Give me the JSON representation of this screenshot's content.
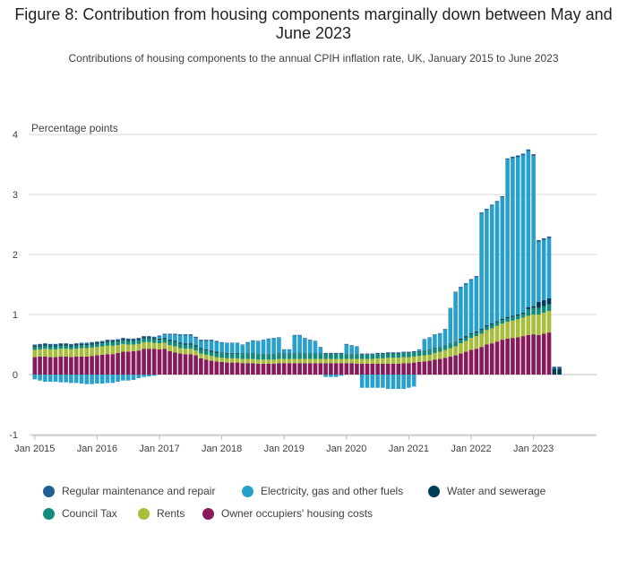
{
  "header": {
    "title": "Figure 8: Contribution from housing components marginally down between May and June 2023",
    "subtitle": "Contributions of housing components to the annual CPIH inflation rate, UK, January 2015 to June 2023"
  },
  "chart_data": {
    "type": "bar",
    "stacked": true,
    "ylabel": "Percentage points",
    "ylim": [
      -1,
      4
    ],
    "yticks": [
      "4",
      "3",
      "2",
      "1",
      "0",
      "-1"
    ],
    "xtick_labels": [
      "Jan 2015",
      "Jan 2016",
      "Jan 2017",
      "Jan 2018",
      "Jan 2019",
      "Jan 2020",
      "Jan 2021",
      "Jan 2022",
      "Jan 2023"
    ],
    "grid": true,
    "legend_position": "bottom",
    "start_month": "Jan 2015",
    "series": [
      {
        "name": "Regular maintenance and repair",
        "color": "#206095",
        "values": [
          0.02,
          0.02,
          0.02,
          0.02,
          0.02,
          0.02,
          0.02,
          0.02,
          0.02,
          0.02,
          0.02,
          0.02,
          0.02,
          0.02,
          0.02,
          0.02,
          0.02,
          0.02,
          0.02,
          0.02,
          0.02,
          0.02,
          0.02,
          0.02,
          0.02,
          0.02,
          0.02,
          0.02,
          0.02,
          0.02,
          0.02,
          0.02,
          0.02,
          0.02,
          0.02,
          0.02,
          0.01,
          0.01,
          0.01,
          0.01,
          0.01,
          0.01,
          0.01,
          0.01,
          0.01,
          0.01,
          0.01,
          0.01,
          0.01,
          0.01,
          0.01,
          0.01,
          0.01,
          0.01,
          0.01,
          0.01,
          0.01,
          0.01,
          0.01,
          0.01,
          0.01,
          0.01,
          0.01,
          0.01,
          0.01,
          0.01,
          0.01,
          0.01,
          0.01,
          0.01,
          0.01,
          0.01,
          0.01,
          0.01,
          0.01,
          0.01,
          0.01,
          0.01,
          0.01,
          0.01,
          0.01,
          0.01,
          0.02,
          0.02,
          0.02,
          0.02,
          0.02,
          0.02,
          0.02,
          0.02,
          0.02,
          0.02,
          0.03,
          0.03,
          0.03,
          0.03,
          0.03,
          0.03,
          0.03,
          0.03,
          0.03,
          0.03
        ]
      },
      {
        "name": "Electricity, gas and other fuels",
        "color": "#27a0cc",
        "values": [
          -0.08,
          -0.1,
          -0.12,
          -0.12,
          -0.12,
          -0.13,
          -0.13,
          -0.14,
          -0.14,
          -0.15,
          -0.16,
          -0.16,
          -0.15,
          -0.15,
          -0.14,
          -0.14,
          -0.12,
          -0.1,
          -0.1,
          -0.09,
          -0.06,
          -0.04,
          -0.03,
          -0.02,
          0.03,
          0.05,
          0.08,
          0.1,
          0.12,
          0.13,
          0.13,
          0.12,
          0.12,
          0.14,
          0.16,
          0.16,
          0.16,
          0.16,
          0.16,
          0.16,
          0.14,
          0.18,
          0.21,
          0.21,
          0.23,
          0.25,
          0.26,
          0.26,
          0.06,
          0.06,
          0.3,
          0.3,
          0.25,
          0.22,
          0.2,
          0.1,
          -0.04,
          -0.04,
          -0.04,
          -0.02,
          0.16,
          0.14,
          0.12,
          -0.22,
          -0.22,
          -0.22,
          -0.22,
          -0.22,
          -0.24,
          -0.24,
          -0.24,
          -0.24,
          -0.22,
          -0.2,
          0.02,
          0.18,
          0.2,
          0.22,
          0.22,
          0.26,
          0.58,
          0.82,
          0.84,
          0.86,
          0.88,
          0.9,
          1.92,
          1.92,
          1.96,
          1.98,
          2.02,
          2.62,
          2.62,
          2.62,
          2.62,
          2.6,
          2.5,
          1.0,
          1.0,
          1.0
        ]
      },
      {
        "name": "Water and sewerage",
        "color": "#003c57",
        "values": [
          0.02,
          0.02,
          0.02,
          0.02,
          0.02,
          0.02,
          0.02,
          0.02,
          0.02,
          0.02,
          0.02,
          0.02,
          0.02,
          0.02,
          0.02,
          0.02,
          0.02,
          0.02,
          0.02,
          0.02,
          0.02,
          0.02,
          0.02,
          0.02,
          0.02,
          0.02,
          0.02,
          0.02,
          0.02,
          0.02,
          0.02,
          0.02,
          0.02,
          0.02,
          0.02,
          0.02,
          0.01,
          0.01,
          0.01,
          0.01,
          0.01,
          0.01,
          0.01,
          0.01,
          0.01,
          0.01,
          0.01,
          0.01,
          0.01,
          0.01,
          0.01,
          0.01,
          0.01,
          0.01,
          0.01,
          0.01,
          0.01,
          0.01,
          0.01,
          0.01,
          0.01,
          0.01,
          0.01,
          0.01,
          0.01,
          0.01,
          0.01,
          0.01,
          0.01,
          0.01,
          0.01,
          0.01,
          0.01,
          0.01,
          0.01,
          0.01,
          0.01,
          0.01,
          0.01,
          0.01,
          0.01,
          0.01,
          0.02,
          0.02,
          0.02,
          0.02,
          0.02,
          0.02,
          0.02,
          0.02,
          0.02,
          0.02,
          0.02,
          0.02,
          0.02,
          0.03,
          0.03,
          0.1,
          0.1,
          0.1,
          0.1,
          0.1
        ]
      },
      {
        "name": "Council Tax",
        "color": "#118c7b",
        "values": [
          0.05,
          0.05,
          0.05,
          0.05,
          0.05,
          0.05,
          0.05,
          0.05,
          0.05,
          0.05,
          0.05,
          0.05,
          0.05,
          0.05,
          0.06,
          0.06,
          0.06,
          0.06,
          0.06,
          0.06,
          0.06,
          0.06,
          0.06,
          0.06,
          0.06,
          0.06,
          0.07,
          0.07,
          0.07,
          0.07,
          0.07,
          0.07,
          0.07,
          0.07,
          0.07,
          0.07,
          0.08,
          0.08,
          0.08,
          0.08,
          0.08,
          0.08,
          0.08,
          0.08,
          0.08,
          0.08,
          0.08,
          0.08,
          0.08,
          0.08,
          0.08,
          0.08,
          0.08,
          0.08,
          0.08,
          0.08,
          0.08,
          0.08,
          0.08,
          0.08,
          0.07,
          0.07,
          0.07,
          0.07,
          0.07,
          0.07,
          0.07,
          0.07,
          0.07,
          0.07,
          0.07,
          0.07,
          0.07,
          0.07,
          0.07,
          0.07,
          0.07,
          0.07,
          0.07,
          0.07,
          0.07,
          0.07,
          0.06,
          0.06,
          0.06,
          0.06,
          0.06,
          0.06,
          0.06,
          0.06,
          0.06,
          0.06,
          0.06,
          0.06,
          0.06,
          0.11,
          0.11,
          0.11,
          0.11,
          0.11
        ]
      },
      {
        "name": "Rents",
        "color": "#a8bd3a",
        "values": [
          0.12,
          0.12,
          0.13,
          0.13,
          0.13,
          0.13,
          0.13,
          0.13,
          0.13,
          0.14,
          0.14,
          0.14,
          0.14,
          0.14,
          0.14,
          0.14,
          0.13,
          0.13,
          0.12,
          0.11,
          0.11,
          0.11,
          0.11,
          0.1,
          0.1,
          0.1,
          0.1,
          0.1,
          0.09,
          0.09,
          0.09,
          0.08,
          0.08,
          0.08,
          0.08,
          0.07,
          0.07,
          0.07,
          0.07,
          0.07,
          0.07,
          0.07,
          0.07,
          0.07,
          0.07,
          0.07,
          0.07,
          0.07,
          0.07,
          0.07,
          0.07,
          0.07,
          0.07,
          0.07,
          0.07,
          0.07,
          0.07,
          0.07,
          0.07,
          0.07,
          0.07,
          0.07,
          0.08,
          0.08,
          0.08,
          0.08,
          0.09,
          0.09,
          0.1,
          0.1,
          0.1,
          0.1,
          0.1,
          0.1,
          0.1,
          0.1,
          0.1,
          0.11,
          0.12,
          0.13,
          0.14,
          0.15,
          0.17,
          0.18,
          0.2,
          0.21,
          0.22,
          0.24,
          0.25,
          0.26,
          0.27,
          0.28,
          0.29,
          0.3,
          0.31,
          0.32,
          0.33,
          0.34,
          0.35,
          0.36
        ]
      },
      {
        "name": "Owner occupiers' housing costs",
        "color": "#871a5b",
        "values": [
          0.29,
          0.3,
          0.3,
          0.29,
          0.29,
          0.3,
          0.3,
          0.29,
          0.3,
          0.3,
          0.3,
          0.31,
          0.32,
          0.33,
          0.34,
          0.34,
          0.36,
          0.38,
          0.38,
          0.39,
          0.4,
          0.43,
          0.43,
          0.43,
          0.42,
          0.43,
          0.39,
          0.37,
          0.35,
          0.34,
          0.34,
          0.32,
          0.27,
          0.25,
          0.23,
          0.22,
          0.21,
          0.2,
          0.2,
          0.2,
          0.19,
          0.19,
          0.19,
          0.18,
          0.18,
          0.18,
          0.18,
          0.19,
          0.19,
          0.19,
          0.19,
          0.19,
          0.19,
          0.19,
          0.19,
          0.19,
          0.19,
          0.19,
          0.19,
          0.19,
          0.19,
          0.19,
          0.18,
          0.18,
          0.18,
          0.18,
          0.18,
          0.18,
          0.18,
          0.18,
          0.18,
          0.19,
          0.19,
          0.2,
          0.21,
          0.22,
          0.23,
          0.25,
          0.26,
          0.28,
          0.3,
          0.32,
          0.35,
          0.38,
          0.41,
          0.43,
          0.46,
          0.5,
          0.52,
          0.55,
          0.58,
          0.6,
          0.61,
          0.62,
          0.64,
          0.66,
          0.67,
          0.66,
          0.68,
          0.7
        ]
      }
    ]
  }
}
